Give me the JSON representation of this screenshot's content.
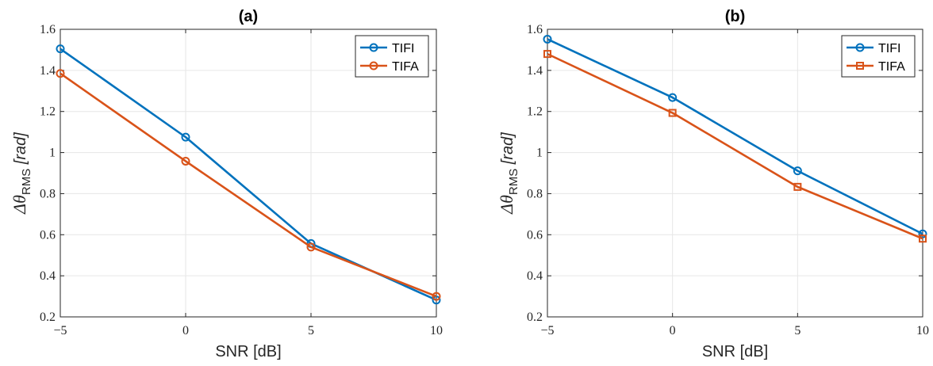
{
  "chart_data": [
    {
      "type": "line",
      "title": "(a)",
      "xlabel": "SNR [dB]",
      "ylabel": "Δθ",
      "ylabel_subscript": "RMS",
      "ylabel_unit": " [rad]",
      "x": [
        -5,
        0,
        5,
        10
      ],
      "xticks": [
        -5,
        0,
        5,
        10
      ],
      "xtick_labels": [
        "−5",
        "0",
        "5",
        "10"
      ],
      "yticks": [
        0.2,
        0.4,
        0.6,
        0.8,
        1,
        1.2,
        1.4,
        1.6
      ],
      "ytick_labels": [
        "0.2",
        "0.4",
        "0.6",
        "0.8",
        "1",
        "1.2",
        "1.4",
        "1.6"
      ],
      "xlim": [
        -5,
        10
      ],
      "ylim": [
        0.2,
        1.6
      ],
      "grid": true,
      "legend_position": "top-right",
      "series": [
        {
          "name": "TIFI",
          "values": [
            1.505,
            1.075,
            0.557,
            0.282
          ],
          "color": "#0072BD",
          "marker": "circle"
        },
        {
          "name": "TIFA",
          "values": [
            1.385,
            0.958,
            0.54,
            0.3
          ],
          "color": "#D95319",
          "marker": "circle"
        }
      ]
    },
    {
      "type": "line",
      "title": "(b)",
      "xlabel": "SNR [dB]",
      "ylabel": "Δθ",
      "ylabel_subscript": "RMS",
      "ylabel_unit": " [rad]",
      "x": [
        -5,
        0,
        5,
        10
      ],
      "xticks": [
        -5,
        0,
        5,
        10
      ],
      "xtick_labels": [
        "−5",
        "0",
        "5",
        "10"
      ],
      "yticks": [
        0.2,
        0.4,
        0.6,
        0.8,
        1,
        1.2,
        1.4,
        1.6
      ],
      "ytick_labels": [
        "0.2",
        "0.4",
        "0.6",
        "0.8",
        "1",
        "1.2",
        "1.4",
        "1.6"
      ],
      "xlim": [
        -5,
        10
      ],
      "ylim": [
        0.2,
        1.6
      ],
      "grid": true,
      "legend_position": "top-right",
      "series": [
        {
          "name": "TIFI",
          "values": [
            1.552,
            1.268,
            0.911,
            0.604
          ],
          "color": "#0072BD",
          "marker": "circle"
        },
        {
          "name": "TIFA",
          "values": [
            1.48,
            1.193,
            0.833,
            0.581
          ],
          "color": "#D95319",
          "marker": "square"
        }
      ]
    }
  ]
}
